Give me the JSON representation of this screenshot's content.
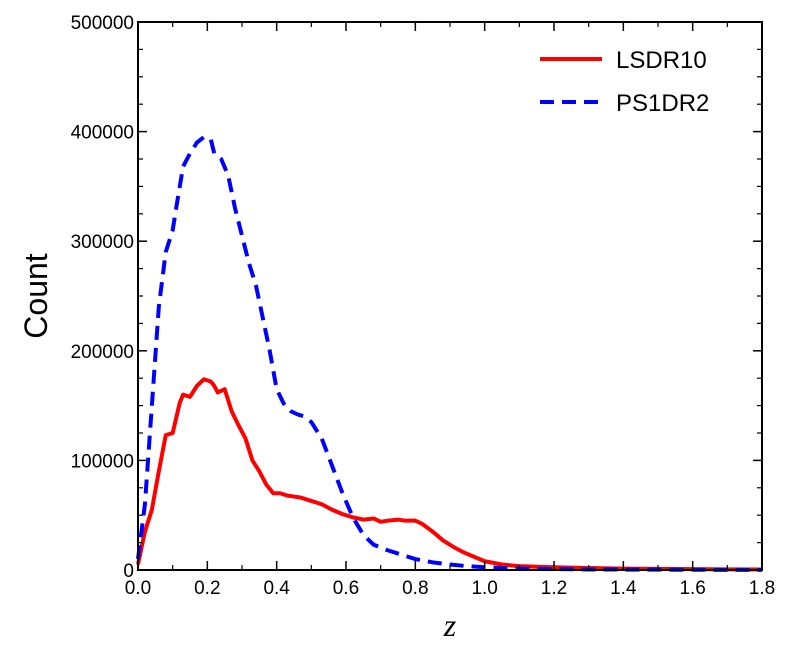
{
  "chart_data": {
    "type": "line",
    "xlabel": "z",
    "ylabel": "Count",
    "xlim": [
      0.0,
      1.8
    ],
    "ylim": [
      0,
      500000
    ],
    "xticks": [
      "0.0",
      "0.2",
      "0.4",
      "0.6",
      "0.8",
      "1.0",
      "1.2",
      "1.4",
      "1.6",
      "1.8"
    ],
    "yticks": [
      "0",
      "100000",
      "200000",
      "300000",
      "400000",
      "500000"
    ],
    "grid": false,
    "legend_position": "top-right",
    "series": [
      {
        "name": "LSDR10",
        "color": "#ff0000",
        "style": "solid",
        "x": [
          0.0,
          0.02,
          0.04,
          0.06,
          0.08,
          0.09,
          0.1,
          0.12,
          0.13,
          0.15,
          0.17,
          0.19,
          0.21,
          0.22,
          0.23,
          0.25,
          0.27,
          0.29,
          0.31,
          0.33,
          0.35,
          0.37,
          0.39,
          0.41,
          0.43,
          0.45,
          0.47,
          0.5,
          0.53,
          0.56,
          0.59,
          0.62,
          0.65,
          0.68,
          0.7,
          0.72,
          0.75,
          0.77,
          0.8,
          0.82,
          0.85,
          0.88,
          0.91,
          0.94,
          0.97,
          1.0,
          1.05,
          1.1,
          1.15,
          1.2,
          1.3,
          1.4,
          1.5,
          1.6,
          1.7,
          1.8
        ],
        "y": [
          5000,
          35000,
          55000,
          90000,
          123000,
          124000,
          125000,
          152000,
          160000,
          158000,
          168000,
          174000,
          172000,
          168000,
          162000,
          165000,
          145000,
          132000,
          120000,
          100000,
          90000,
          78000,
          70000,
          70000,
          68000,
          67000,
          66000,
          63000,
          60000,
          55000,
          51000,
          48000,
          46000,
          47000,
          44000,
          45000,
          46000,
          45000,
          45000,
          42000,
          35000,
          27000,
          21000,
          16000,
          12000,
          8000,
          5000,
          3500,
          3000,
          2500,
          1800,
          1300,
          1000,
          800,
          600,
          500
        ]
      },
      {
        "name": "PS1DR2",
        "color": "#0000ff",
        "style": "dashed",
        "x": [
          0.0,
          0.02,
          0.04,
          0.06,
          0.08,
          0.1,
          0.11,
          0.13,
          0.15,
          0.17,
          0.19,
          0.21,
          0.22,
          0.24,
          0.26,
          0.28,
          0.3,
          0.32,
          0.34,
          0.36,
          0.38,
          0.4,
          0.42,
          0.44,
          0.46,
          0.48,
          0.5,
          0.53,
          0.56,
          0.59,
          0.62,
          0.65,
          0.68,
          0.72,
          0.76,
          0.8,
          0.85,
          0.9,
          0.95,
          1.0,
          1.05,
          1.1,
          1.15,
          1.2,
          1.3,
          1.4,
          1.5,
          1.6,
          1.7,
          1.8
        ],
        "y": [
          10000,
          60000,
          150000,
          240000,
          290000,
          310000,
          330000,
          368000,
          380000,
          390000,
          395000,
          393000,
          380000,
          375000,
          360000,
          330000,
          305000,
          280000,
          260000,
          230000,
          200000,
          165000,
          152000,
          145000,
          142000,
          140000,
          135000,
          120000,
          95000,
          70000,
          48000,
          32000,
          23000,
          18000,
          14000,
          10000,
          7000,
          5000,
          3500,
          2500,
          1800,
          1300,
          1000,
          800,
          500,
          400,
          300,
          200,
          150,
          100
        ]
      }
    ]
  }
}
